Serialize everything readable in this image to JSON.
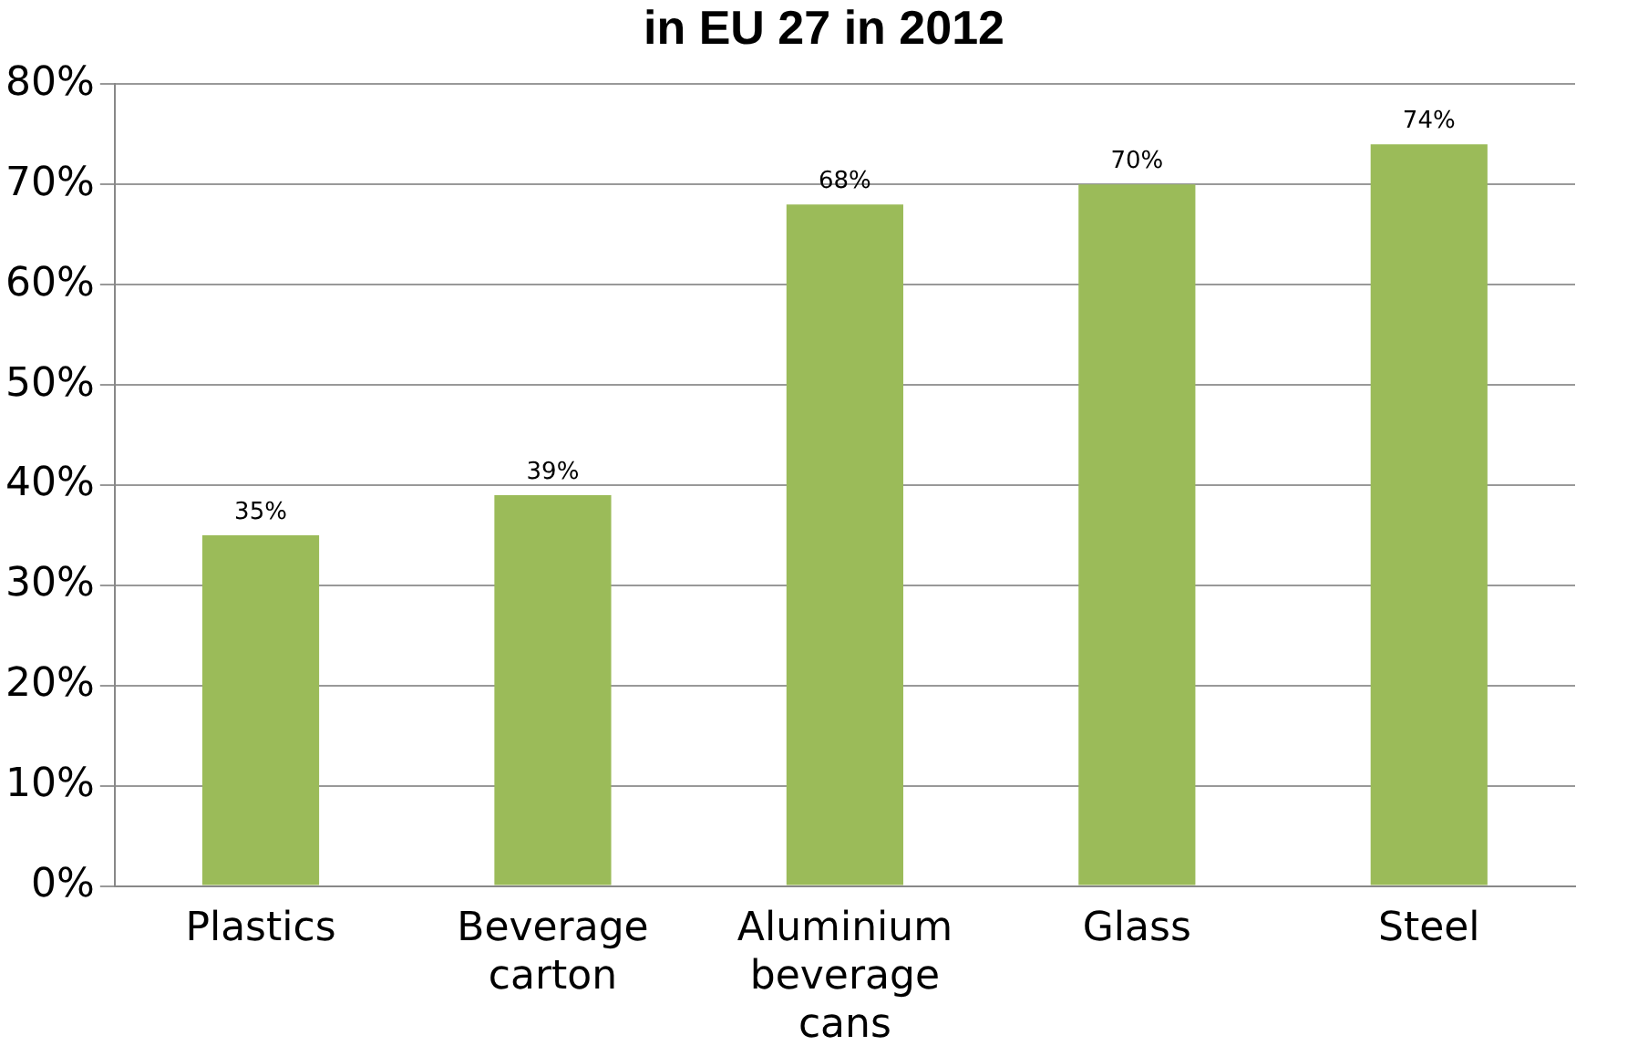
{
  "chart_data": {
    "type": "bar",
    "title": "in EU 27 in 2012",
    "categories": [
      "Plastics",
      "Beverage carton",
      "Aluminium beverage cans",
      "Glass",
      "Steel"
    ],
    "values": [
      35,
      39,
      68,
      70,
      74
    ],
    "color": "#9bbb59",
    "value_labels": [
      "35%",
      "39%",
      "68%",
      "70%",
      "74%"
    ],
    "ylim": [
      0,
      80
    ],
    "yticks": [
      {
        "value": 0,
        "label": "0%"
      },
      {
        "value": 10,
        "label": "10%"
      },
      {
        "value": 20,
        "label": "20%"
      },
      {
        "value": 30,
        "label": "30%"
      },
      {
        "value": 40,
        "label": "40%"
      },
      {
        "value": 50,
        "label": "50%"
      },
      {
        "value": 60,
        "label": "60%"
      },
      {
        "value": 70,
        "label": "70%"
      },
      {
        "value": 80,
        "label": "80%"
      }
    ],
    "grid": "y",
    "legend": false
  }
}
